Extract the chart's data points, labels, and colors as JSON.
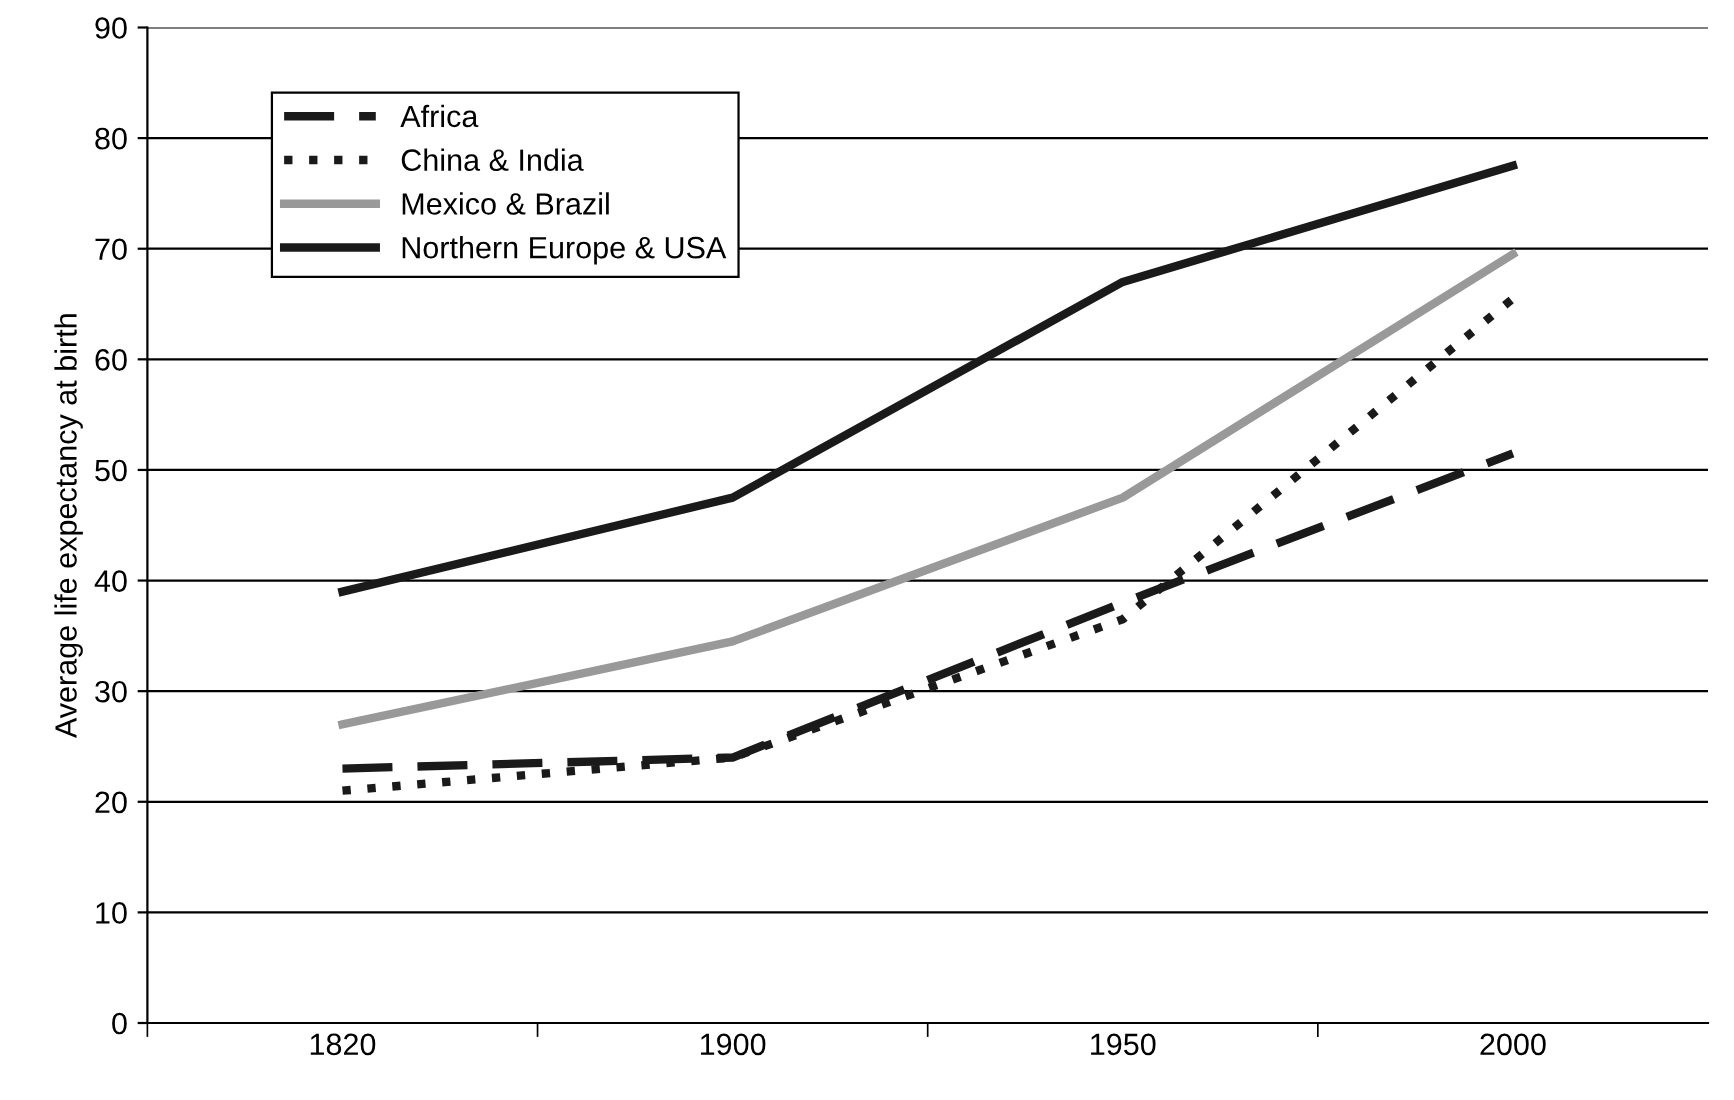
{
  "chart_data": {
    "type": "line",
    "ylabel": "Average life expectancy at birth",
    "categories": [
      "1820",
      "1900",
      "1950",
      "2000"
    ],
    "series": [
      {
        "name": "Africa",
        "color": "#1a1a1a",
        "line_style": "dashed",
        "values": [
          23,
          24,
          38,
          51.5
        ]
      },
      {
        "name": "China & India",
        "color": "#1a1a1a",
        "line_style": "dotted",
        "values": [
          21,
          24,
          36.5,
          65.5
        ]
      },
      {
        "name": "Mexico & Brazil",
        "color": "#999999",
        "line_style": "solid",
        "values": [
          27,
          34.5,
          47.5,
          69.5
        ]
      },
      {
        "name": "Northern Europe & USA",
        "color": "#1a1a1a",
        "line_style": "solid",
        "values": [
          39,
          47.5,
          67,
          77.5
        ]
      }
    ],
    "ylim": [
      0,
      90
    ],
    "yticks": [
      0,
      10,
      20,
      30,
      40,
      50,
      60,
      70,
      80,
      90
    ],
    "grid": "y",
    "legend": "top left",
    "marker": "none"
  }
}
